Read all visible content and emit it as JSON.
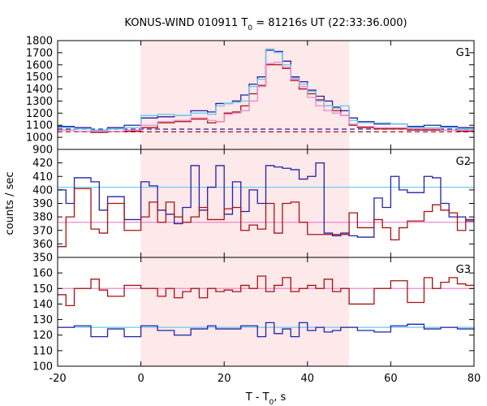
{
  "chart_data": {
    "type": "line",
    "title": "KONUS-WIND 010911 T",
    "title_subscript": "0",
    "title_suffix": " = 81216s UT (22:33:36.000)",
    "xlabel": "T - T",
    "xlabel_subscript": "0",
    "xlabel_suffix": ", s",
    "ylabel": "counts / sec",
    "xlim": [
      -20,
      80
    ],
    "xticks": [
      -20,
      0,
      20,
      40,
      60,
      80
    ],
    "shaded_interval": [
      0,
      50
    ],
    "panels": [
      {
        "name": "G1",
        "ylim": [
          900,
          1800
        ],
        "yticks": [
          900,
          1000,
          1100,
          1200,
          1300,
          1400,
          1500,
          1600,
          1700,
          1800
        ],
        "series": [
          {
            "color": "#2222aa",
            "x": [
              -20,
              -16,
              -12,
              -8,
              -4,
              0,
              4,
              8,
              12,
              16,
              18,
              20,
              22,
              24,
              26,
              28,
              30,
              32,
              34,
              36,
              38,
              40,
              42,
              44,
              46,
              48,
              50,
              52,
              56,
              60,
              64,
              68,
              72,
              76,
              80
            ],
            "y": [
              1090,
              1080,
              1060,
              1080,
              1100,
              1160,
              1170,
              1180,
              1220,
              1210,
              1280,
              1280,
              1300,
              1350,
              1440,
              1500,
              1720,
              1710,
              1630,
              1500,
              1460,
              1390,
              1340,
              1300,
              1250,
              1220,
              1160,
              1130,
              1110,
              1110,
              1090,
              1100,
              1090,
              1080,
              1080
            ]
          },
          {
            "color": "#aa1111",
            "x": [
              -20,
              -16,
              -12,
              -8,
              -4,
              0,
              4,
              8,
              12,
              16,
              18,
              20,
              22,
              24,
              26,
              28,
              30,
              32,
              34,
              36,
              38,
              40,
              42,
              44,
              46,
              48,
              50,
              52,
              56,
              60,
              64,
              68,
              72,
              76,
              80
            ],
            "y": [
              1060,
              1050,
              1040,
              1050,
              1050,
              1080,
              1120,
              1130,
              1150,
              1120,
              1130,
              1200,
              1210,
              1260,
              1360,
              1430,
              1600,
              1600,
              1570,
              1470,
              1400,
              1360,
              1310,
              1260,
              1220,
              1180,
              1100,
              1080,
              1070,
              1070,
              1060,
              1060,
              1060,
              1050,
              1050
            ]
          },
          {
            "color": "#66ccee",
            "x": [
              -20,
              -16,
              -12,
              -8,
              -4,
              0,
              4,
              8,
              12,
              16,
              18,
              20,
              22,
              24,
              26,
              28,
              30,
              32,
              34,
              36,
              38,
              40,
              42,
              44,
              46,
              48,
              50,
              52,
              56,
              60,
              64,
              68,
              72,
              76,
              80
            ],
            "y": [
              1080,
              1070,
              1060,
              1070,
              1080,
              1180,
              1190,
              1180,
              1200,
              1190,
              1260,
              1280,
              1290,
              1300,
              1420,
              1480,
              1730,
              1700,
              1600,
              1490,
              1440,
              1380,
              1300,
              1260,
              1240,
              1260,
              1140,
              1120,
              1120,
              1110,
              1080,
              1080,
              1080,
              1070,
              1070
            ]
          },
          {
            "color": "#ee88cc",
            "x": [
              -20,
              -16,
              -12,
              -8,
              -4,
              0,
              4,
              8,
              12,
              16,
              18,
              20,
              22,
              24,
              26,
              28,
              30,
              32,
              34,
              36,
              38,
              40,
              42,
              44,
              46,
              48,
              50,
              52,
              56,
              60,
              64,
              68,
              72,
              76,
              80
            ],
            "y": [
              1060,
              1050,
              1050,
              1050,
              1060,
              1100,
              1130,
              1140,
              1160,
              1140,
              1130,
              1190,
              1200,
              1220,
              1300,
              1420,
              1610,
              1620,
              1580,
              1480,
              1420,
              1330,
              1260,
              1220,
              1200,
              1180,
              1110,
              1090,
              1080,
              1080,
              1070,
              1070,
              1060,
              1060,
              1060
            ]
          }
        ],
        "background_lines": [
          {
            "color": "#2222aa",
            "y": 1068,
            "dashed": true
          },
          {
            "color": "#aa1111",
            "y": 1045,
            "dashed": true
          }
        ]
      },
      {
        "name": "G2",
        "ylim": [
          350,
          430
        ],
        "yticks": [
          350,
          360,
          370,
          380,
          390,
          400,
          410,
          420
        ],
        "series": [
          {
            "color": "#2222aa",
            "x": [
              -20,
              -18,
              -16,
              -12,
              -10,
              -8,
              -4,
              0,
              2,
              4,
              6,
              8,
              10,
              12,
              14,
              16,
              18,
              20,
              22,
              24,
              26,
              28,
              30,
              32,
              34,
              36,
              38,
              40,
              42,
              44,
              46,
              48,
              50,
              52,
              56,
              58,
              60,
              62,
              64,
              68,
              70,
              72,
              74,
              76,
              78,
              80
            ],
            "y": [
              400,
              390,
              409,
              406,
              385,
              395,
              378,
              406,
              403,
              385,
              382,
              375,
              387,
              418,
              385,
              402,
              418,
              382,
              406,
              384,
              400,
              390,
              418,
              417,
              416,
              415,
              408,
              410,
              420,
              368,
              366,
              368,
              366,
              365,
              394,
              387,
              410,
              400,
              398,
              410,
              409,
              390,
              380,
              380,
              377,
              377
            ]
          },
          {
            "color": "#aa1111",
            "x": [
              -20,
              -18,
              -16,
              -12,
              -10,
              -8,
              -4,
              0,
              2,
              4,
              6,
              8,
              10,
              12,
              14,
              16,
              18,
              20,
              22,
              24,
              26,
              28,
              30,
              32,
              34,
              36,
              38,
              40,
              42,
              44,
              46,
              48,
              50,
              52,
              56,
              58,
              60,
              62,
              64,
              68,
              70,
              72,
              74,
              76,
              78,
              80
            ],
            "y": [
              358,
              380,
              401,
              371,
              368,
              390,
              370,
              380,
              391,
              376,
              391,
              380,
              376,
              380,
              387,
              378,
              378,
              386,
              387,
              370,
              374,
              371,
              390,
              368,
              390,
              391,
              376,
              367,
              367,
              367,
              367,
              367,
              383,
              372,
              378,
              372,
              363,
              372,
              377,
              384,
              389,
              385,
              383,
              370,
              378,
              378
            ]
          }
        ],
        "background_lines": [
          {
            "color": "#66ccee",
            "y": 402
          },
          {
            "color": "#ee88cc",
            "y": 376
          }
        ]
      },
      {
        "name": "G3",
        "ylim": [
          100,
          170
        ],
        "yticks": [
          100,
          110,
          120,
          130,
          140,
          150,
          160
        ],
        "series": [
          {
            "color": "#2222aa",
            "x": [
              -20,
              -16,
              -12,
              -8,
              -4,
              0,
              4,
              8,
              12,
              16,
              18,
              20,
              24,
              28,
              30,
              32,
              34,
              36,
              38,
              40,
              42,
              44,
              46,
              48,
              52,
              56,
              60,
              64,
              68,
              72,
              76,
              80
            ],
            "y": [
              125,
              126,
              119,
              124,
              119,
              126,
              123,
              120,
              124,
              126,
              124,
              124,
              126,
              119,
              128,
              121,
              124,
              119,
              128,
              123,
              125,
              122,
              123,
              125,
              123,
              122,
              126,
              127,
              124,
              125,
              124,
              123
            ]
          },
          {
            "color": "#aa1111",
            "x": [
              -20,
              -18,
              -16,
              -12,
              -10,
              -8,
              -4,
              0,
              4,
              6,
              8,
              10,
              12,
              14,
              16,
              18,
              20,
              22,
              24,
              26,
              28,
              30,
              32,
              34,
              36,
              38,
              40,
              42,
              44,
              46,
              48,
              50,
              52,
              56,
              60,
              64,
              68,
              70,
              72,
              74,
              76,
              78,
              80
            ],
            "y": [
              146,
              139,
              150,
              156,
              149,
              145,
              152,
              150,
              145,
              150,
              144,
              148,
              150,
              144,
              150,
              148,
              149,
              148,
              152,
              150,
              158,
              148,
              152,
              157,
              148,
              150,
              152,
              150,
              156,
              148,
              150,
              140,
              140,
              150,
              155,
              141,
              157,
              150,
              154,
              157,
              153,
              152,
              152
            ]
          }
        ],
        "background_lines": [
          {
            "color": "#66ccee",
            "y": 125
          },
          {
            "color": "#ee88cc",
            "y": 150
          }
        ]
      }
    ]
  }
}
